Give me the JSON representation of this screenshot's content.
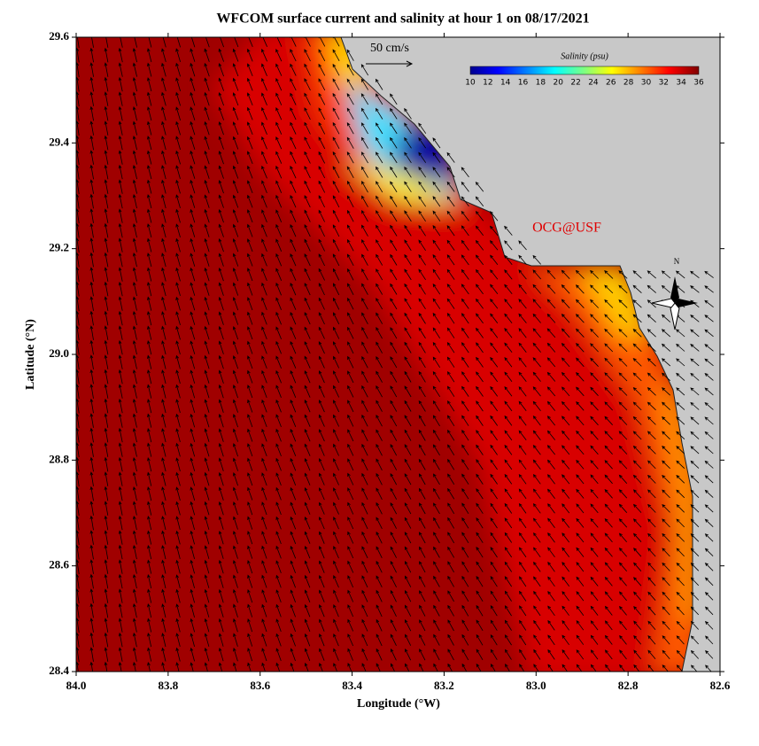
{
  "header": {
    "title": "WFCOM surface current and salinity at hour 1 on 08/17/2021"
  },
  "map": {
    "x_axis": {
      "label": "Longitude (°W)",
      "range": [
        84.0,
        82.6
      ],
      "ticks": [
        {
          "value": 84,
          "label": "84.0"
        },
        {
          "value": 83.8,
          "label": "83.8"
        },
        {
          "value": 83.6,
          "label": "83.6"
        },
        {
          "value": 83.4,
          "label": "83.4"
        },
        {
          "value": 83.2,
          "label": "83.2"
        },
        {
          "value": 83,
          "label": "83.0"
        },
        {
          "value": 82.8,
          "label": "82.8"
        },
        {
          "value": 82.6,
          "label": "82.6"
        }
      ]
    },
    "y_axis": {
      "label": "Latitude (°N)",
      "range": [
        28.4,
        29.6
      ],
      "ticks": [
        {
          "value": 28.4,
          "label": "28.4"
        },
        {
          "value": 28.6,
          "label": "28.6"
        },
        {
          "value": 28.8,
          "label": "28.8"
        },
        {
          "value": 29,
          "label": "29.0"
        },
        {
          "value": 29.2,
          "label": "29.2"
        },
        {
          "value": 29.4,
          "label": "29.4"
        },
        {
          "value": 29.6,
          "label": "29.6"
        }
      ]
    },
    "colorbar": {
      "title": "Salinity (psu)",
      "range": [
        10,
        36
      ],
      "ticks": [
        10,
        12,
        14,
        16,
        18,
        20,
        22,
        24,
        26,
        28,
        30,
        32,
        34,
        36
      ]
    },
    "scale_arrow": {
      "label": "50 cm/s"
    },
    "credit": "OCG@USF",
    "compass": "N"
  }
}
